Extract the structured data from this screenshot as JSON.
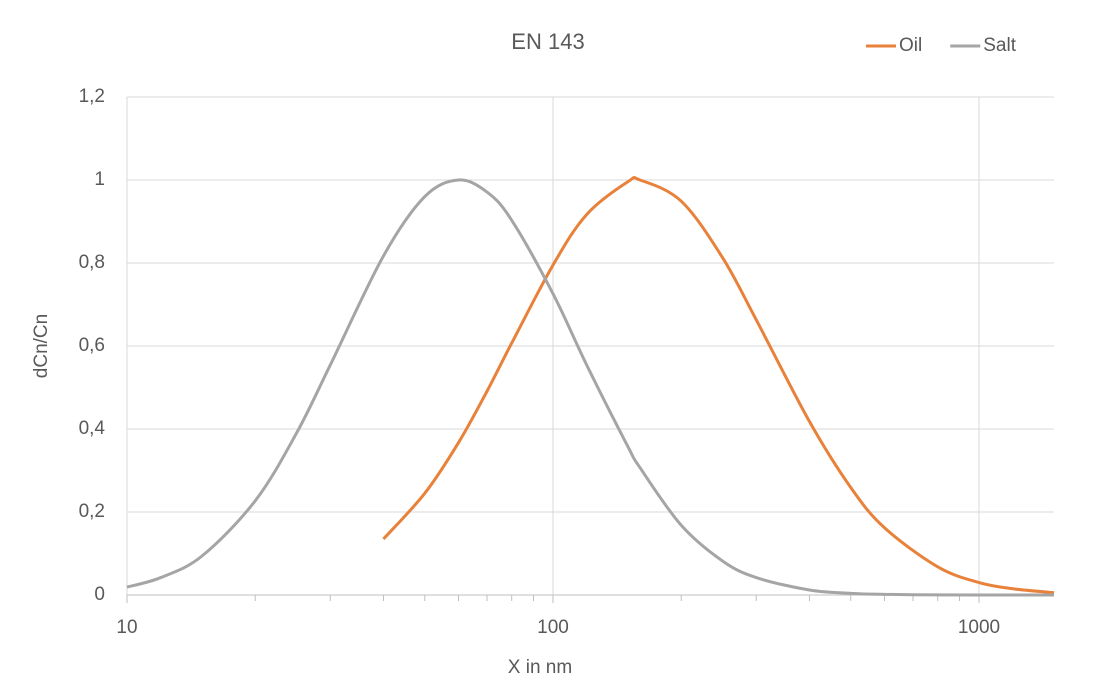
{
  "chart_data": {
    "type": "line",
    "title": "EN 143",
    "x_label": "X in nm",
    "y_label": "dCn/Cn",
    "log_x": true,
    "grid": true,
    "legend": "top-right",
    "x": [
      10,
      12,
      15,
      20,
      25,
      30,
      40,
      50,
      60,
      70,
      80,
      100,
      120,
      150,
      160,
      200,
      250,
      300,
      400,
      500,
      600,
      800,
      1000,
      1200,
      1500
    ],
    "series": [
      {
        "name": "Oil",
        "color": "#e8813a",
        "values": [
          null,
          null,
          null,
          null,
          null,
          null,
          0.135,
          0.245,
          0.367,
          0.491,
          0.607,
          0.795,
          0.917,
          0.996,
          1,
          0.949,
          0.813,
          0.663,
          0.418,
          0.259,
          0.162,
          0.068,
          0.03,
          0.015,
          0.0055
        ]
      },
      {
        "name": "Salt",
        "color": "#a5a5a5",
        "values": [
          0.019,
          0.042,
          0.094,
          0.227,
          0.39,
          0.554,
          0.817,
          0.96,
          1,
          0.971,
          0.903,
          0.726,
          0.554,
          0.357,
          0.307,
          0.168,
          0.082,
          0.042,
          0.012,
          0.004,
          0.0015,
          0.0003,
          0.0001,
          0,
          0
        ]
      }
    ],
    "xlim": [
      10,
      1500
    ],
    "xticks": [
      10,
      100,
      1000
    ],
    "xminorticks": [
      20,
      30,
      40,
      50,
      60,
      70,
      80,
      90,
      200,
      300,
      400,
      500,
      600,
      700,
      800,
      900
    ],
    "ylim": [
      0,
      1.2
    ],
    "yticks": [
      0,
      {
        "value": 0.2,
        "label": "0,2"
      },
      {
        "value": 0.4,
        "label": "0,4"
      },
      {
        "value": 0.6,
        "label": "0,6"
      },
      {
        "value": 0.8,
        "label": "0,8"
      },
      1,
      {
        "value": 1.2,
        "label": "1,2"
      }
    ]
  }
}
